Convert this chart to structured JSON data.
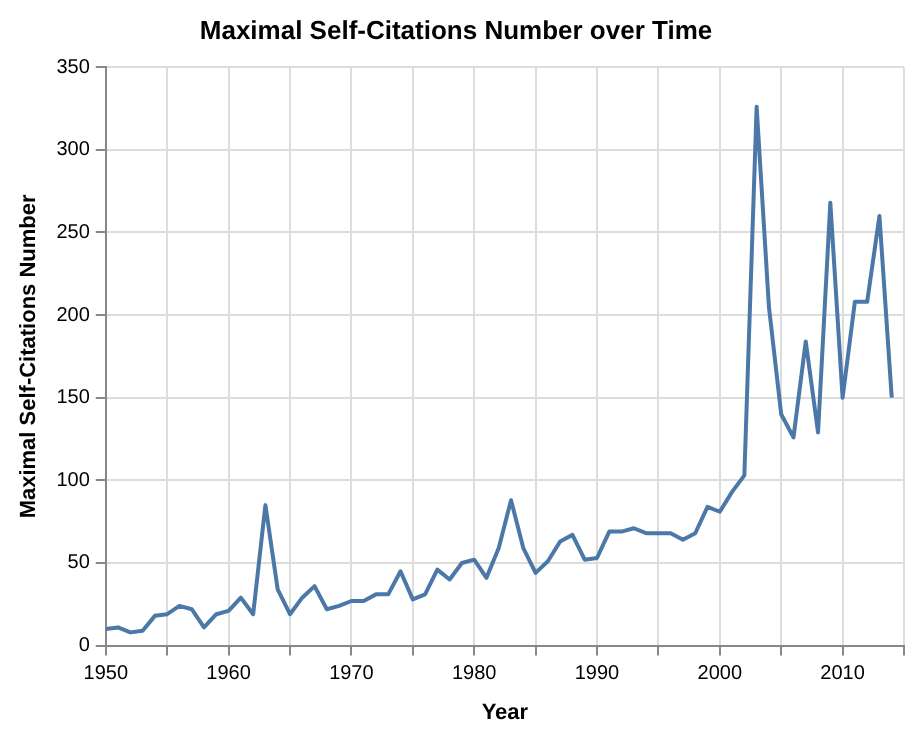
{
  "chart_data": {
    "type": "line",
    "title": "Maximal Self-Citations Number over Time",
    "xlabel": "Year",
    "ylabel": "Maximal Self-Citations Number",
    "x": [
      1950,
      1951,
      1952,
      1953,
      1954,
      1955,
      1956,
      1957,
      1958,
      1959,
      1960,
      1961,
      1962,
      1963,
      1964,
      1965,
      1966,
      1967,
      1968,
      1969,
      1970,
      1971,
      1972,
      1973,
      1974,
      1975,
      1976,
      1977,
      1978,
      1979,
      1980,
      1981,
      1982,
      1983,
      1984,
      1985,
      1986,
      1987,
      1988,
      1989,
      1990,
      1991,
      1992,
      1993,
      1994,
      1995,
      1996,
      1997,
      1998,
      1999,
      2000,
      2001,
      2002,
      2003,
      2004,
      2005,
      2006,
      2007,
      2008,
      2009,
      2010,
      2011,
      2012,
      2013,
      2014
    ],
    "series": [
      {
        "color": "#4c78a8",
        "values": [
          10,
          11,
          8,
          9,
          18,
          19,
          24,
          22,
          11,
          19,
          21,
          29,
          19,
          85,
          34,
          19,
          29,
          36,
          22,
          24,
          27,
          27,
          31,
          31,
          45,
          28,
          31,
          46,
          40,
          50,
          52,
          41,
          59,
          88,
          59,
          44,
          51,
          63,
          67,
          52,
          53,
          69,
          69,
          71,
          68,
          68,
          68,
          64,
          68,
          84,
          81,
          93,
          103,
          326,
          205,
          140,
          126,
          184,
          129,
          268,
          150,
          208,
          208,
          260,
          150
        ]
      }
    ],
    "xlim": [
      1950,
      2015
    ],
    "xticks": [
      1950,
      {
        "value": 1955,
        "label": null
      },
      1960,
      {
        "value": 1965,
        "label": null
      },
      1970,
      {
        "value": 1975,
        "label": null
      },
      1980,
      {
        "value": 1985,
        "label": null
      },
      1990,
      {
        "value": 1995,
        "label": null
      },
      2000,
      {
        "value": 2005,
        "label": null
      },
      2010,
      {
        "value": 2015,
        "label": null
      }
    ],
    "ylim": [
      0,
      350
    ],
    "yticks": [
      0,
      50,
      100,
      150,
      200,
      250,
      300,
      350
    ],
    "grid": true,
    "legend": false,
    "marker": "none",
    "line_style": "solid"
  }
}
